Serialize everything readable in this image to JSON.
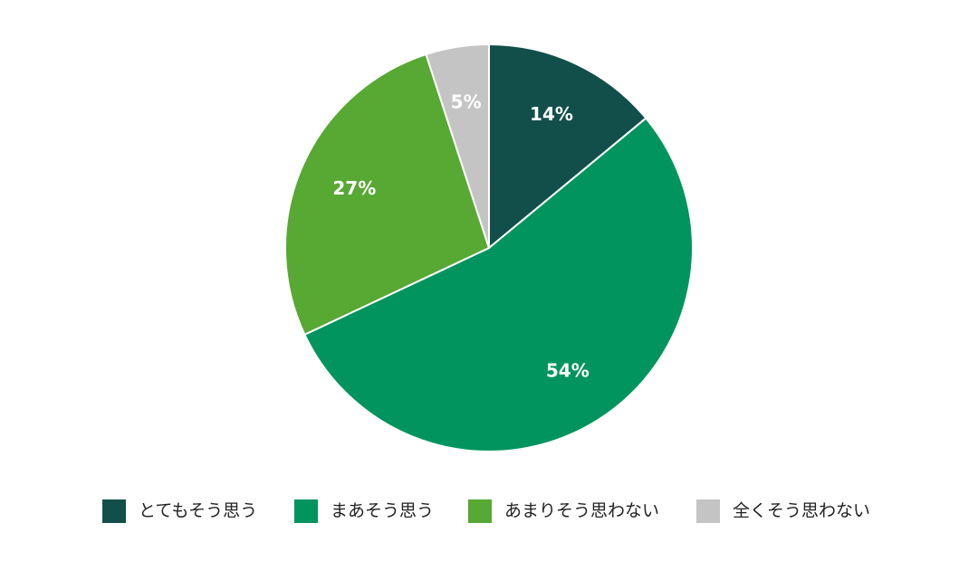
{
  "chart_data": {
    "type": "pie",
    "categories": [
      "とてもそう思う",
      "まあそう思う",
      "あまりそう思わない",
      "全くそう思わない"
    ],
    "values": [
      14,
      54,
      27,
      5
    ],
    "value_labels": [
      "14%",
      "54%",
      "27%",
      "5%"
    ],
    "colors": [
      "#134f4a",
      "#02945f",
      "#58a834",
      "#c4c4c4"
    ],
    "legend": "bottom"
  }
}
